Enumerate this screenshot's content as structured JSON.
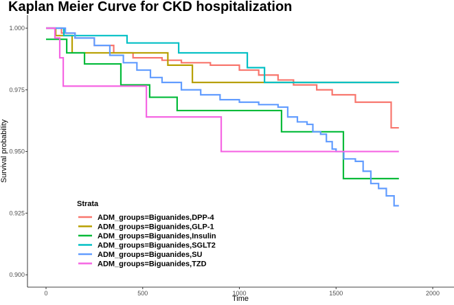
{
  "chart_data": {
    "type": "line",
    "step": true,
    "title": "Kaplan Meier Curve for CKD hospitalization",
    "x_label": "Time",
    "y_label": "Survival probability",
    "legend_title": "Strata",
    "legend_position": "bottom-left",
    "grid": false,
    "xlim": [
      -96,
      2110
    ],
    "ylim": [
      0.895,
      1.0053
    ],
    "xticks": [
      0,
      500,
      1000,
      1500,
      2000
    ],
    "yticks": [
      {
        "value": 1.0,
        "label": "1.000"
      },
      0.975,
      {
        "value": 0.95,
        "label": "0.950"
      },
      0.925,
      {
        "value": 0.9,
        "label": "0.900"
      }
    ],
    "series": [
      {
        "name": "ADM_groups=Biguanides,DPP-4",
        "color": "#F8766D",
        "x": [
          0,
          80,
          150,
          250,
          350,
          450,
          600,
          700,
          850,
          1000,
          1100,
          1200,
          1280,
          1400,
          1480,
          1600,
          1785,
          1825
        ],
        "values": [
          1.0,
          0.998,
          0.996,
          0.993,
          0.99,
          0.988,
          0.987,
          0.986,
          0.985,
          0.983,
          0.981,
          0.979,
          0.977,
          0.975,
          0.973,
          0.97,
          0.9596,
          0.9596
        ]
      },
      {
        "name": "ADM_groups=Biguanides,GLP-1",
        "color": "#B79F00",
        "x": [
          0,
          50,
          135,
          630,
          757,
          1825
        ],
        "values": [
          1.0,
          0.997,
          0.99,
          0.985,
          0.978,
          0.978
        ]
      },
      {
        "name": "ADM_groups=Biguanides,Insulin",
        "color": "#00BA38",
        "x": [
          0,
          107,
          199,
          387,
          536,
          678,
          1218,
          1538,
          1825
        ],
        "values": [
          0.9955,
          0.99,
          0.9855,
          0.977,
          0.972,
          0.9666,
          0.958,
          0.939,
          0.939
        ]
      },
      {
        "name": "ADM_groups=Biguanides,SGLT2",
        "color": "#00BFC4",
        "x": [
          0,
          92,
          419,
          686,
          1041,
          1130,
          1825
        ],
        "values": [
          1.0,
          0.997,
          0.994,
          0.99,
          0.984,
          0.978,
          0.978
        ]
      },
      {
        "name": "ADM_groups=Biguanides,SU",
        "color": "#619CFF",
        "x": [
          0,
          100,
          150,
          250,
          330,
          400,
          470,
          540,
          600,
          700,
          800,
          900,
          1000,
          1100,
          1200,
          1250,
          1300,
          1350,
          1380,
          1420,
          1450,
          1480,
          1500,
          1540,
          1600,
          1640,
          1680,
          1720,
          1760,
          1800,
          1825
        ],
        "values": [
          1.0,
          0.998,
          0.996,
          0.993,
          0.989,
          0.986,
          0.983,
          0.98,
          0.978,
          0.975,
          0.973,
          0.971,
          0.97,
          0.969,
          0.968,
          0.964,
          0.962,
          0.961,
          0.958,
          0.957,
          0.954,
          0.951,
          0.95,
          0.947,
          0.946,
          0.942,
          0.937,
          0.935,
          0.932,
          0.928,
          0.928
        ]
      },
      {
        "name": "ADM_groups=Biguanides,TZD",
        "color": "#F564E3",
        "x": [
          0,
          46,
          71,
          89,
          519,
          906,
          1825
        ],
        "values": [
          1.0,
          0.996,
          0.988,
          0.9765,
          0.964,
          0.95,
          0.95
        ]
      }
    ]
  }
}
